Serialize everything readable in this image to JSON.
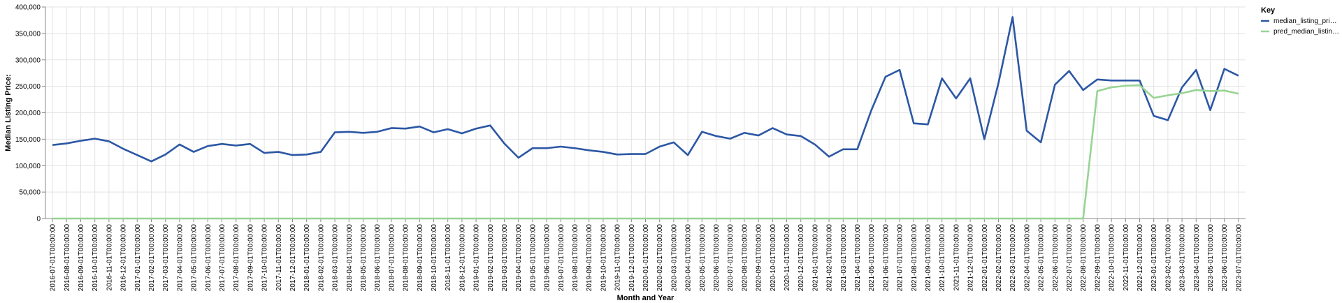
{
  "chart_data": {
    "type": "line",
    "xlabel": "Month and Year",
    "ylabel": "Median Listing Price:",
    "ylim": [
      0,
      400000
    ],
    "yticks": [
      "0",
      "50,000",
      "100,000",
      "150,000",
      "200,000",
      "250,000",
      "300,000",
      "350,000",
      "400,000"
    ],
    "grid": true,
    "legend": {
      "title": "Key",
      "position": "top-right",
      "entries": [
        {
          "label": "median_listing_pri…",
          "series": 0
        },
        {
          "label": "pred_median_listin…",
          "series": 1
        }
      ]
    },
    "x": [
      "2016-07-01T00:00:00",
      "2016-08-01T00:00:00",
      "2016-09-01T00:00:00",
      "2016-10-01T00:00:00",
      "2016-11-01T00:00:00",
      "2016-12-01T00:00:00",
      "2017-01-01T00:00:00",
      "2017-02-01T00:00:00",
      "2017-03-01T00:00:00",
      "2017-04-01T00:00:00",
      "2017-05-01T00:00:00",
      "2017-06-01T00:00:00",
      "2017-07-01T00:00:00",
      "2017-08-01T00:00:00",
      "2017-09-01T00:00:00",
      "2017-10-01T00:00:00",
      "2017-11-01T00:00:00",
      "2017-12-01T00:00:00",
      "2018-01-01T00:00:00",
      "2018-02-01T00:00:00",
      "2018-03-01T00:00:00",
      "2018-04-01T00:00:00",
      "2018-05-01T00:00:00",
      "2018-06-01T00:00:00",
      "2018-07-01T00:00:00",
      "2018-08-01T00:00:00",
      "2018-09-01T00:00:00",
      "2018-10-01T00:00:00",
      "2018-11-01T00:00:00",
      "2018-12-01T00:00:00",
      "2019-01-01T00:00:00",
      "2019-02-01T00:00:00",
      "2019-03-01T00:00:00",
      "2019-04-01T00:00:00",
      "2019-05-01T00:00:00",
      "2019-06-01T00:00:00",
      "2019-07-01T00:00:00",
      "2019-08-01T00:00:00",
      "2019-09-01T00:00:00",
      "2019-10-01T00:00:00",
      "2019-11-01T00:00:00",
      "2019-12-01T00:00:00",
      "2020-01-01T00:00:00",
      "2020-02-01T00:00:00",
      "2020-03-01T00:00:00",
      "2020-04-01T00:00:00",
      "2020-05-01T00:00:00",
      "2020-06-01T00:00:00",
      "2020-07-01T00:00:00",
      "2020-08-01T00:00:00",
      "2020-09-01T00:00:00",
      "2020-10-01T00:00:00",
      "2020-11-01T00:00:00",
      "2020-12-01T00:00:00",
      "2021-01-01T00:00:00",
      "2021-02-01T00:00:00",
      "2021-03-01T00:00:00",
      "2021-04-01T00:00:00",
      "2021-05-01T00:00:00",
      "2021-06-01T00:00:00",
      "2021-07-01T00:00:00",
      "2021-08-01T00:00:00",
      "2021-09-01T00:00:00",
      "2021-10-01T00:00:00",
      "2021-11-01T00:00:00",
      "2021-12-01T00:00:00",
      "2022-01-01T00:00:00",
      "2022-02-01T00:00:00",
      "2022-03-01T00:00:00",
      "2022-04-01T00:00:00",
      "2022-05-01T00:00:00",
      "2022-06-01T00:00:00",
      "2022-07-01T00:00:00",
      "2022-08-01T00:00:00",
      "2022-09-01T00:00:00",
      "2022-10-01T00:00:00",
      "2022-11-01T00:00:00",
      "2022-12-01T00:00:00",
      "2023-01-01T00:00:00",
      "2023-02-01T00:00:00",
      "2023-03-01T00:00:00",
      "2023-04-01T00:00:00",
      "2023-05-01T00:00:00",
      "2023-06-01T00:00:00",
      "2023-07-01T00:00:00"
    ],
    "series": [
      {
        "name": "median_listing_pri…",
        "color": "#2c57a4",
        "values": [
          139000,
          142000,
          147000,
          151000,
          146000,
          132000,
          120000,
          108000,
          121000,
          140000,
          126000,
          137000,
          141000,
          138000,
          141000,
          124000,
          126000,
          120000,
          121000,
          126000,
          163000,
          164000,
          162000,
          164000,
          171000,
          170000,
          174000,
          163000,
          169000,
          161000,
          170000,
          176000,
          142000,
          115000,
          133000,
          133000,
          136000,
          133000,
          129000,
          126000,
          121000,
          122000,
          122000,
          136000,
          144000,
          120000,
          164000,
          156000,
          151000,
          162000,
          157000,
          171000,
          159000,
          156000,
          140000,
          117000,
          131000,
          131000,
          205000,
          268000,
          281000,
          180000,
          178000,
          265000,
          227000,
          265000,
          150000,
          256000,
          381000,
          166000,
          144000,
          253000,
          279000,
          243000,
          263000,
          261000,
          261000,
          261000,
          194000,
          186000,
          248000,
          281000,
          205000,
          283000,
          270000
        ]
      },
      {
        "name": "pred_median_listin…",
        "color": "#98d494",
        "values": [
          0,
          0,
          0,
          0,
          0,
          0,
          0,
          0,
          0,
          0,
          0,
          0,
          0,
          0,
          0,
          0,
          0,
          0,
          0,
          0,
          0,
          0,
          0,
          0,
          0,
          0,
          0,
          0,
          0,
          0,
          0,
          0,
          0,
          0,
          0,
          0,
          0,
          0,
          0,
          0,
          0,
          0,
          0,
          0,
          0,
          0,
          0,
          0,
          0,
          0,
          0,
          0,
          0,
          0,
          0,
          0,
          0,
          0,
          0,
          0,
          0,
          0,
          0,
          0,
          0,
          0,
          0,
          0,
          0,
          0,
          0,
          0,
          0,
          0,
          241000,
          248000,
          251000,
          252000,
          228000,
          233000,
          237000,
          243000,
          241000,
          242000,
          236000
        ]
      }
    ]
  }
}
